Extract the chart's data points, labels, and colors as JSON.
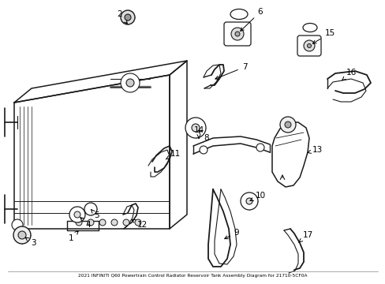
{
  "title": "2021 INFINITI Q60 Powertrain Control Radiator Reservoir Tank Assembly Diagram for 21710-5CF0A",
  "background_color": "#ffffff",
  "line_color": "#1a1a1a",
  "figsize": [
    4.89,
    3.6
  ],
  "dpi": 100
}
